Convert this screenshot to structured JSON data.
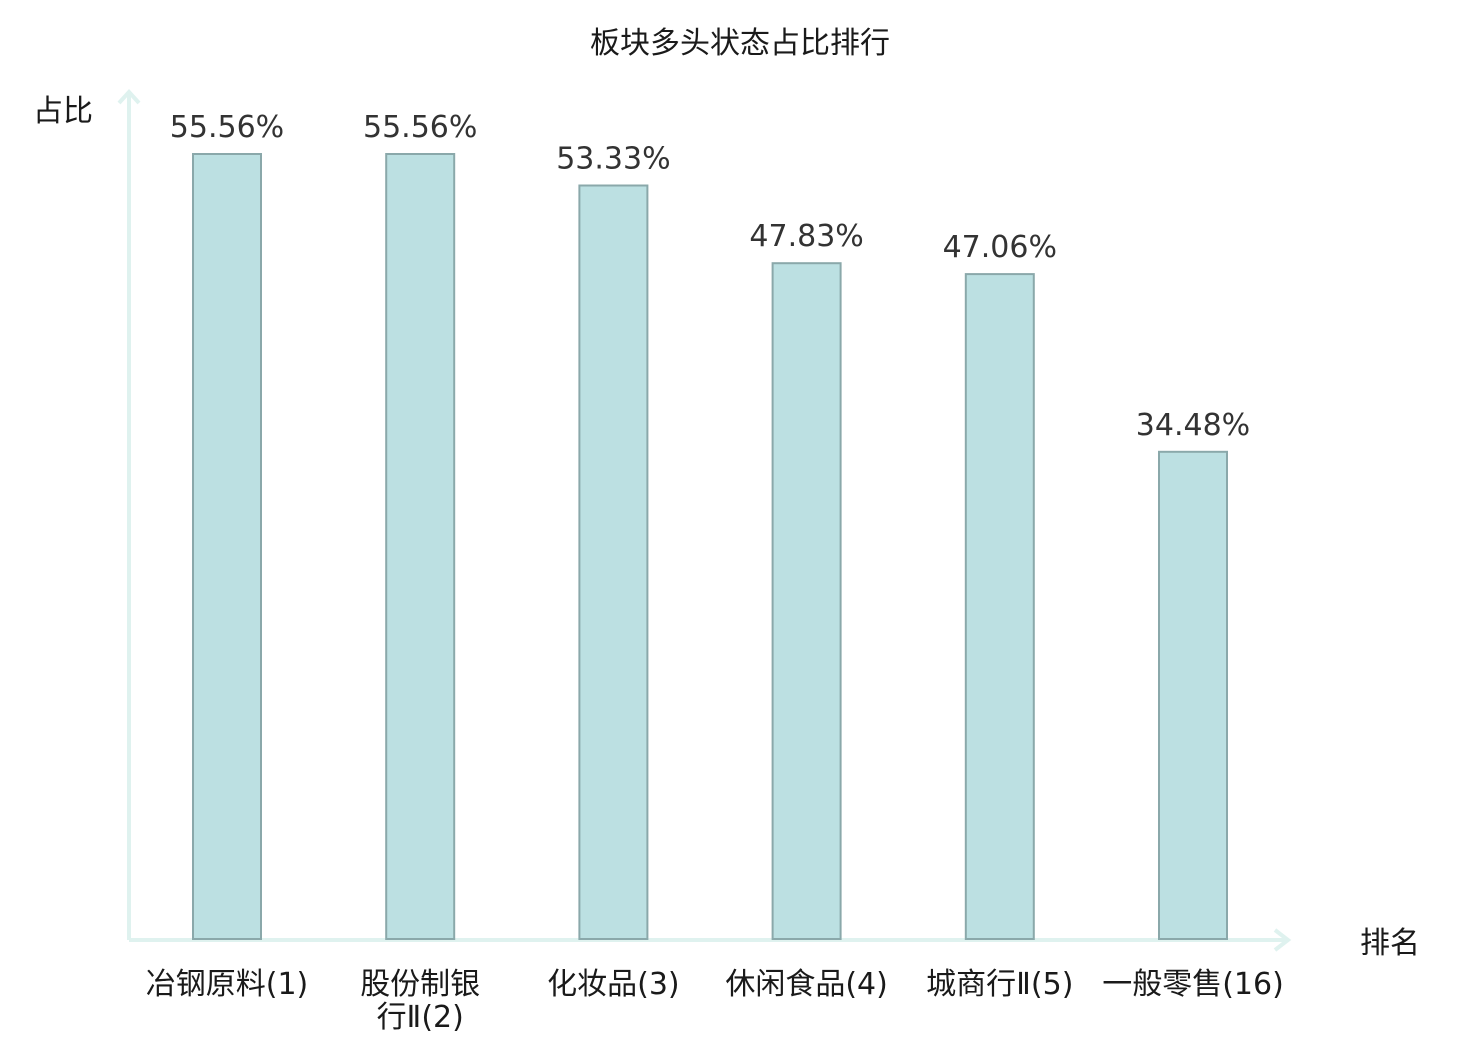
{
  "chart_data": {
    "type": "bar",
    "title": "板块多头状态占比排行",
    "xlabel": "排名",
    "ylabel": "占比",
    "categories": [
      "冶钢原料(1)",
      "股份制银行Ⅱ(2)",
      "化妆品(3)",
      "休闲食品(4)",
      "城商行Ⅱ(5)",
      "一般零售(16)"
    ],
    "category_lines": [
      [
        "冶钢原料(1)"
      ],
      [
        "股份制银",
        "行Ⅱ(2)"
      ],
      [
        "化妆品(3)"
      ],
      [
        "休闲食品(4)"
      ],
      [
        "城商行Ⅱ(5)"
      ],
      [
        "一般零售(16)"
      ]
    ],
    "values": [
      55.56,
      55.56,
      53.33,
      47.83,
      47.06,
      34.48
    ],
    "value_labels": [
      "55.56%",
      "55.56%",
      "53.33%",
      "47.83%",
      "47.06%",
      "34.48%"
    ],
    "highlight_index": 5,
    "ylim": [
      0,
      55.56
    ],
    "grid": false,
    "colors": {
      "bar_fill": "#bce0e2",
      "bar_stroke": "#8aa8aa",
      "axis": "#dff2ef",
      "highlight_label": "#e0201f",
      "text": "#1a1a1a",
      "value_text": "#333333"
    }
  }
}
